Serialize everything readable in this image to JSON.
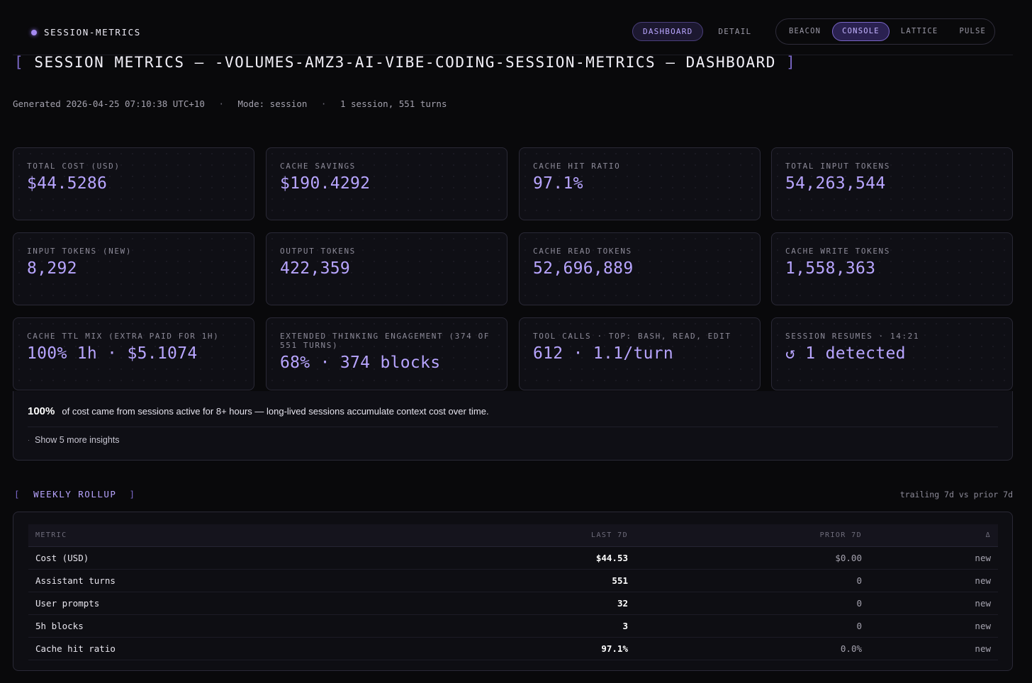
{
  "nav": {
    "brand": "SESSION-METRICS",
    "views": [
      "DASHBOARD",
      "DETAIL"
    ],
    "active_view": "DASHBOARD",
    "themes": [
      "BEACON",
      "CONSOLE",
      "LATTICE",
      "PULSE"
    ],
    "active_theme": "CONSOLE"
  },
  "header": {
    "bracket_open": "[",
    "title": "SESSION METRICS — -VOLUMES-AMZ3-AI-VIBE-CODING-SESSION-METRICS — DASHBOARD",
    "bracket_close": "]",
    "generated": "Generated 2026-04-25 07:10:38 UTC+10",
    "mode": "Mode: session",
    "summary": "1 session, 551 turns",
    "separator": "·"
  },
  "cards": [
    {
      "label": "TOTAL COST (USD)",
      "value": "$44.5286"
    },
    {
      "label": "CACHE SAVINGS",
      "value": "$190.4292"
    },
    {
      "label": "CACHE HIT RATIO",
      "value": "97.1%"
    },
    {
      "label": "TOTAL INPUT TOKENS",
      "value": "54,263,544"
    },
    {
      "label": "INPUT TOKENS (NEW)",
      "value": "8,292"
    },
    {
      "label": "OUTPUT TOKENS",
      "value": "422,359"
    },
    {
      "label": "CACHE READ TOKENS",
      "value": "52,696,889"
    },
    {
      "label": "CACHE WRITE TOKENS",
      "value": "1,558,363"
    },
    {
      "label": "CACHE TTL MIX (EXTRA PAID FOR 1H)",
      "value": "100% 1h · $5.1074"
    },
    {
      "label": "EXTENDED THINKING ENGAGEMENT (374 OF 551 TURNS)",
      "value": "68% · 374 blocks"
    },
    {
      "label": "TOOL CALLS · TOP: BASH, READ, EDIT",
      "value": "612 · 1.1/turn"
    },
    {
      "label": "SESSION RESUMES · 14:21",
      "value": "↺ 1 detected"
    }
  ],
  "insight": {
    "percent": "100%",
    "text": "of cost came from sessions active for 8+ hours — long-lived sessions accumulate context cost over time.",
    "bullet": "·",
    "more_label": "Show 5 more insights"
  },
  "weekly": {
    "title": "WEEKLY ROLLUP",
    "note": "trailing 7d vs prior 7d",
    "columns": [
      "METRIC",
      "LAST 7D",
      "PRIOR 7D",
      "Δ"
    ],
    "rows": [
      {
        "metric": "Cost (USD)",
        "last": "$44.53",
        "prior": "$0.00",
        "delta": "new"
      },
      {
        "metric": "Assistant turns",
        "last": "551",
        "prior": "0",
        "delta": "new"
      },
      {
        "metric": "User prompts",
        "last": "32",
        "prior": "0",
        "delta": "new"
      },
      {
        "metric": "5h blocks",
        "last": "3",
        "prior": "0",
        "delta": "new"
      },
      {
        "metric": "Cache hit ratio",
        "last": "97.1%",
        "prior": "0.0%",
        "delta": "new"
      }
    ]
  },
  "colors": {
    "accent": "#b8a5ff",
    "background": "#09090b",
    "card_border": "#2a2936"
  }
}
